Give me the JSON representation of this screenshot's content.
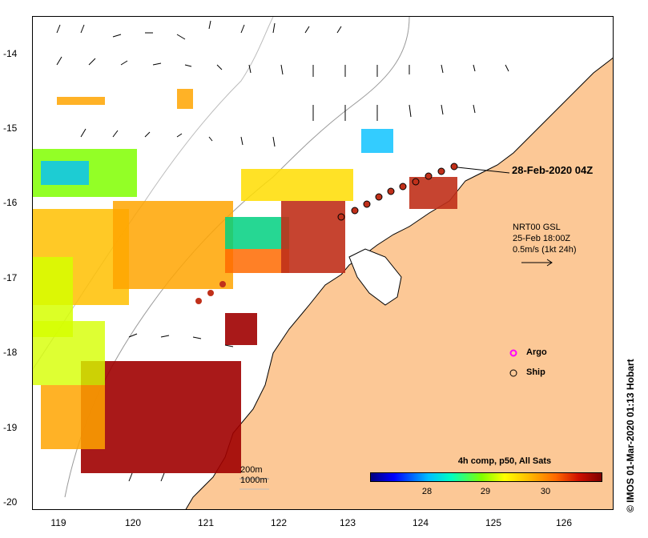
{
  "map": {
    "date_label": "28-Feb-2020 04Z",
    "y_ticks": [
      "-14",
      "-15",
      "-16",
      "-17",
      "-18",
      "-19",
      "-20"
    ],
    "x_ticks": [
      "119",
      "120",
      "121",
      "122",
      "123",
      "124",
      "125",
      "126"
    ],
    "current_legend": {
      "line1": "NRT00 GSL",
      "line2": "25-Feb 18:00Z",
      "line3": "0.5m/s (1kt 24h)"
    },
    "depth_labels": {
      "shallow": "200m",
      "deep": "1000m"
    },
    "symbols": {
      "argo": "Argo",
      "ship": "Ship"
    },
    "colorbar": {
      "title": "4h comp, p50, All Sats",
      "ticks": [
        "28",
        "29",
        "30"
      ]
    },
    "credit": "© IMOS 01-Mar-2020 01:13 Hobart",
    "colors": {
      "land": "#fcc896",
      "track_fill": "#c0301a",
      "sst_cold": "#0000ff",
      "sst_mid": "#80ff00",
      "sst_warm": "#ffa500",
      "sst_hot": "#a00000"
    }
  }
}
